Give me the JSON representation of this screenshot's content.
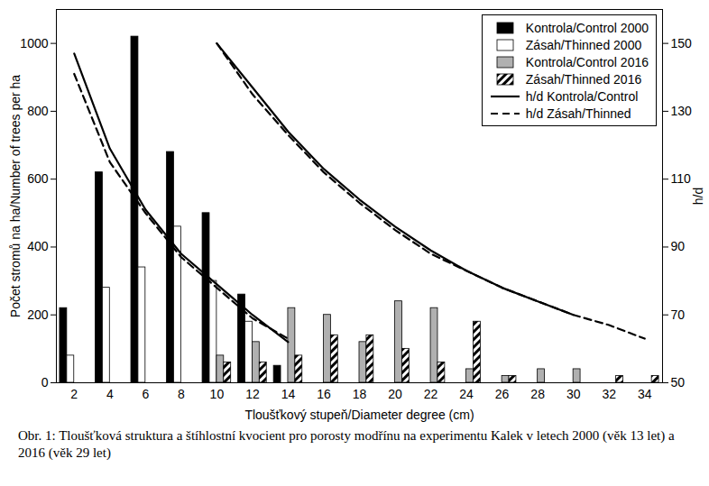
{
  "chart_data": {
    "type": "bar",
    "title": "Obr. 1: Tloušťková struktura a štíhlostní kvocient pro porosty modřínu na experimentu Kalek v letech 2000 (věk 13 let) a 2016 (věk 29 let)",
    "x_label": "Tloušťkový stupeň/Diameter degree (cm)",
    "y_label": "Počet stromů na ha/Number of trees per ha",
    "y2_label": "h/d",
    "categories": [
      2,
      4,
      6,
      8,
      10,
      12,
      14,
      16,
      18,
      20,
      22,
      24,
      26,
      28,
      30,
      32,
      34
    ],
    "xlim": [
      1,
      35
    ],
    "xticks": [
      2,
      4,
      6,
      8,
      10,
      12,
      14,
      16,
      18,
      20,
      22,
      24,
      26,
      28,
      30,
      32,
      34
    ],
    "ylim": [
      0,
      1100
    ],
    "yticks": [
      0,
      200,
      400,
      600,
      800,
      1000
    ],
    "y2lim": [
      50,
      160
    ],
    "y2ticks": [
      50,
      70,
      90,
      110,
      130,
      150
    ],
    "legend": "top-right",
    "series": [
      {
        "name": "Kontrola/Control 2000",
        "type": "bar",
        "color": "#000000",
        "values": [
          220,
          620,
          1020,
          680,
          500,
          260,
          50,
          null,
          null,
          null,
          null,
          null,
          null,
          null,
          null,
          null,
          null
        ]
      },
      {
        "name": "Zásah/Thinned 2000",
        "type": "bar",
        "color": "#ffffff",
        "values": [
          80,
          280,
          340,
          460,
          300,
          180,
          null,
          null,
          null,
          null,
          null,
          null,
          null,
          null,
          null,
          null,
          null
        ]
      },
      {
        "name": "Kontrola/Control 2016",
        "type": "bar",
        "color": "#b0b0b0",
        "values": [
          null,
          null,
          null,
          null,
          80,
          120,
          220,
          200,
          120,
          240,
          220,
          40,
          20,
          40,
          40,
          null,
          null
        ]
      },
      {
        "name": "Zásah/Thinned 2016",
        "type": "bar",
        "color": "#000000",
        "line_style": "hatched",
        "values": [
          null,
          null,
          null,
          null,
          60,
          60,
          80,
          140,
          140,
          100,
          60,
          180,
          20,
          null,
          null,
          20,
          20
        ]
      },
      {
        "name": "h/d Kontrola/Control",
        "type": "line",
        "axis": "y2",
        "color": "#000000",
        "line_style": "solid",
        "x": [
          2,
          4,
          6,
          8,
          10,
          12,
          14,
          null,
          10,
          12,
          14,
          16,
          18,
          20,
          22,
          24,
          26,
          28,
          30
        ],
        "values": [
          147,
          119,
          101,
          88,
          79,
          70,
          62,
          null,
          150,
          137,
          124,
          113,
          104,
          96,
          89,
          83,
          78,
          74,
          70
        ]
      },
      {
        "name": "h/d Zásah/Thinned",
        "type": "line",
        "axis": "y2",
        "color": "#000000",
        "line_style": "dashed",
        "x": [
          2,
          4,
          6,
          8,
          10,
          12,
          14,
          null,
          10,
          12,
          14,
          16,
          18,
          20,
          22,
          24,
          26,
          28,
          30,
          32,
          34
        ],
        "values": [
          141,
          115,
          100,
          87,
          78,
          69,
          63,
          null,
          150,
          135,
          123,
          112,
          103,
          95,
          88,
          83,
          78,
          74,
          70,
          67,
          63
        ]
      }
    ]
  }
}
